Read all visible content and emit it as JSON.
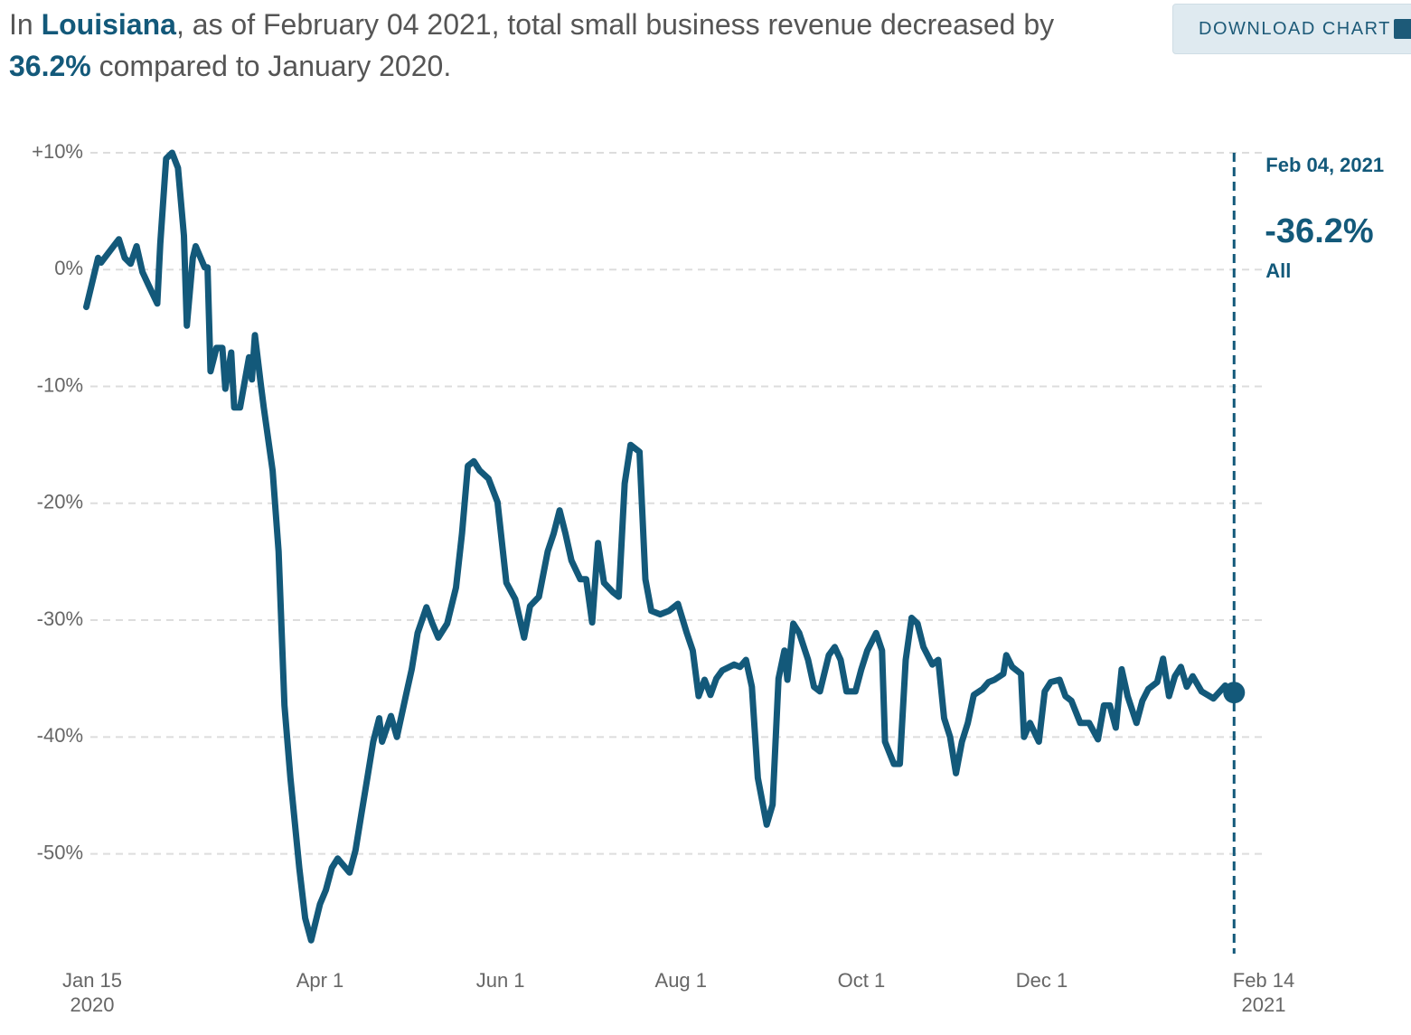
{
  "headline": {
    "prefix": "In",
    "place": "Louisiana",
    "middle": ", as of February 04 2021, total small business revenue decreased by",
    "change": "36.2%",
    "suffix": "compared to January 2020."
  },
  "download_button": "DOWNLOAD CHART",
  "chart_data": {
    "type": "line",
    "x": [
      "2020-01-13",
      "2020-01-17",
      "2020-01-18",
      "2020-01-21",
      "2020-01-24",
      "2020-01-26",
      "2020-01-28",
      "2020-01-30",
      "2020-02-01",
      "2020-02-03",
      "2020-02-06",
      "2020-02-07",
      "2020-02-09",
      "2020-02-11",
      "2020-02-13",
      "2020-02-15",
      "2020-02-16",
      "2020-02-18",
      "2020-02-19",
      "2020-02-22",
      "2020-02-23",
      "2020-02-24",
      "2020-02-26",
      "2020-02-28",
      "2020-02-29",
      "2020-03-02",
      "2020-03-03",
      "2020-03-05",
      "2020-03-08",
      "2020-03-09",
      "2020-03-10",
      "2020-03-12",
      "2020-03-13",
      "2020-03-16",
      "2020-03-18",
      "2020-03-20",
      "2020-03-22",
      "2020-03-25",
      "2020-03-27",
      "2020-03-29",
      "2020-04-01",
      "2020-04-03",
      "2020-04-05",
      "2020-04-07",
      "2020-04-11",
      "2020-04-13",
      "2020-04-15",
      "2020-04-17",
      "2020-04-19",
      "2020-04-21",
      "2020-04-22",
      "2020-04-25",
      "2020-04-27",
      "2020-04-30",
      "2020-05-02",
      "2020-05-04",
      "2020-05-07",
      "2020-05-09",
      "2020-05-11",
      "2020-05-14",
      "2020-05-17",
      "2020-05-19",
      "2020-05-21",
      "2020-05-23",
      "2020-05-25",
      "2020-05-28",
      "2020-05-31",
      "2020-06-03",
      "2020-06-06",
      "2020-06-09",
      "2020-06-11",
      "2020-06-14",
      "2020-06-17",
      "2020-06-19",
      "2020-06-21",
      "2020-06-23",
      "2020-06-25",
      "2020-06-28",
      "2020-06-30",
      "2020-07-02",
      "2020-07-04",
      "2020-07-06",
      "2020-07-09",
      "2020-07-11",
      "2020-07-13",
      "2020-07-15",
      "2020-07-18",
      "2020-07-20",
      "2020-07-22",
      "2020-07-25",
      "2020-07-28",
      "2020-07-31",
      "2020-08-03",
      "2020-08-05",
      "2020-08-07",
      "2020-08-09",
      "2020-08-11",
      "2020-08-13",
      "2020-08-15",
      "2020-08-19",
      "2020-08-21",
      "2020-08-23",
      "2020-08-25",
      "2020-08-27",
      "2020-08-30",
      "2020-09-01",
      "2020-09-03",
      "2020-09-05",
      "2020-09-06",
      "2020-09-08",
      "2020-09-10",
      "2020-09-13",
      "2020-09-15",
      "2020-09-17",
      "2020-09-20",
      "2020-09-22",
      "2020-09-24",
      "2020-09-26",
      "2020-09-29",
      "2020-10-01",
      "2020-10-03",
      "2020-10-06",
      "2020-10-08",
      "2020-10-09",
      "2020-10-12",
      "2020-10-14",
      "2020-10-16",
      "2020-10-18",
      "2020-10-20",
      "2020-10-22",
      "2020-10-25",
      "2020-10-27",
      "2020-10-29",
      "2020-10-31",
      "2020-11-02",
      "2020-11-04",
      "2020-11-06",
      "2020-11-08",
      "2020-11-11",
      "2020-11-13",
      "2020-11-15",
      "2020-11-18",
      "2020-11-19",
      "2020-11-21",
      "2020-11-24",
      "2020-11-25",
      "2020-11-27",
      "2020-11-30",
      "2020-12-02",
      "2020-12-04",
      "2020-12-07",
      "2020-12-09",
      "2020-12-11",
      "2020-12-14",
      "2020-12-17",
      "2020-12-20",
      "2020-12-22",
      "2020-12-24",
      "2020-12-26",
      "2020-12-28",
      "2020-12-30",
      "2021-01-02",
      "2021-01-04",
      "2021-01-06",
      "2021-01-09",
      "2021-01-11",
      "2021-01-13",
      "2021-01-15",
      "2021-01-17",
      "2021-01-19",
      "2021-01-21",
      "2021-01-24",
      "2021-01-26",
      "2021-01-28",
      "2021-02-01",
      "2021-02-04"
    ],
    "series": [
      {
        "name": "All",
        "color": "#13597a",
        "values": [
          -3.2,
          1.0,
          0.6,
          1.6,
          2.6,
          1.0,
          0.5,
          2.0,
          -0.2,
          -1.3,
          -2.9,
          2.2,
          9.5,
          10.0,
          8.7,
          2.9,
          -4.8,
          1.0,
          2.0,
          0.2,
          0.2,
          -8.7,
          -6.7,
          -6.7,
          -10.2,
          -7.1,
          -11.8,
          -11.8,
          -7.5,
          -9.4,
          -5.6,
          -9.8,
          -11.8,
          -17.2,
          -24.1,
          -37.3,
          -43.5,
          -51.2,
          -55.5,
          -57.4,
          -54.3,
          -53.1,
          -51.2,
          -50.4,
          -51.6,
          -49.7,
          -46.6,
          -43.5,
          -40.4,
          -38.4,
          -40.4,
          -38.2,
          -40.0,
          -36.5,
          -34.2,
          -31.1,
          -28.9,
          -30.3,
          -31.5,
          -30.3,
          -27.2,
          -22.6,
          -16.8,
          -16.4,
          -17.2,
          -17.9,
          -19.9,
          -26.8,
          -28.2,
          -31.5,
          -28.8,
          -28.0,
          -24.1,
          -22.6,
          -20.6,
          -22.6,
          -24.9,
          -26.5,
          -26.5,
          -30.2,
          -23.4,
          -26.8,
          -27.6,
          -28.0,
          -18.3,
          -15.0,
          -15.6,
          -26.5,
          -29.2,
          -29.5,
          -29.2,
          -28.6,
          -31.1,
          -32.6,
          -36.5,
          -35.1,
          -36.4,
          -35.0,
          -34.3,
          -33.8,
          -34.0,
          -33.4,
          -35.7,
          -43.5,
          -47.5,
          -45.8,
          -35.0,
          -32.6,
          -35.1,
          -30.3,
          -31.1,
          -33.4,
          -35.7,
          -36.1,
          -33.0,
          -32.3,
          -33.4,
          -36.1,
          -36.1,
          -34.2,
          -32.6,
          -31.1,
          -32.6,
          -40.4,
          -42.3,
          -42.3,
          -33.4,
          -29.8,
          -30.3,
          -32.3,
          -33.8,
          -33.4,
          -38.4,
          -40.0,
          -43.1,
          -40.4,
          -38.8,
          -36.4,
          -35.9,
          -35.3,
          -35.1,
          -34.6,
          -33.0,
          -34.0,
          -34.6,
          -40.0,
          -38.8,
          -40.4,
          -36.1,
          -35.3,
          -35.1,
          -36.5,
          -36.9,
          -38.8,
          -38.8,
          -40.2,
          -37.3,
          -37.3,
          -39.2,
          -34.2,
          -36.5,
          -38.8,
          -36.9,
          -35.9,
          -35.3,
          -33.3,
          -36.5,
          -34.8,
          -34.0,
          -35.7,
          -34.8,
          -36.1,
          -36.4,
          -36.7,
          -35.6,
          -36.2
        ]
      }
    ],
    "highlight": {
      "date_label": "Feb 04, 2021",
      "value_label": "-36.2%"
    },
    "xlim": [
      "2020-01-15",
      "2021-02-14"
    ],
    "xticks": [
      {
        "value": "2020-01-15",
        "label": "Jan 15",
        "year": "2020"
      },
      {
        "value": "2020-04-01",
        "label": "Apr 1"
      },
      {
        "value": "2020-06-01",
        "label": "Jun 1"
      },
      {
        "value": "2020-08-01",
        "label": "Aug 1"
      },
      {
        "value": "2020-10-01",
        "label": "Oct 1"
      },
      {
        "value": "2020-12-01",
        "label": "Dec 1"
      },
      {
        "value": "2021-02-14",
        "label": "Feb 14",
        "year": "2021"
      }
    ],
    "ylim": [
      -58,
      10
    ],
    "yticks": [
      {
        "value": 10,
        "label": "+10%"
      },
      {
        "value": 0,
        "label": "0%"
      },
      {
        "value": -10,
        "label": "-10%"
      },
      {
        "value": -20,
        "label": "-20%"
      },
      {
        "value": -30,
        "label": "-30%"
      },
      {
        "value": -40,
        "label": "-40%"
      },
      {
        "value": -50,
        "label": "-50%"
      }
    ],
    "grid": true
  }
}
